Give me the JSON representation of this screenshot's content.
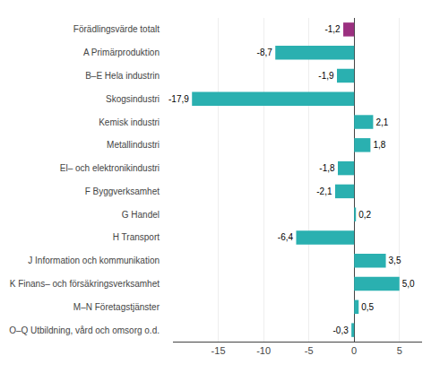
{
  "chart_data": {
    "type": "bar",
    "orientation": "horizontal",
    "categories": [
      "Förädlingsvärde totalt",
      "A Primärproduktion",
      "B–E Hela industrin",
      "Skogsindustri",
      "Kemisk industri",
      "Metallindustri",
      "El– och elektronikindustri",
      "F Byggverksamhet",
      "G Handel",
      "H Transport",
      "J Information och kommunikation",
      "K Finans– och försäkringsverksamhet",
      "M–N Företagstjänster",
      "O–Q Utbildning, vård och omsorg o.d."
    ],
    "values": [
      -1.2,
      -8.7,
      -1.9,
      -17.9,
      2.1,
      1.8,
      -1.8,
      -2.1,
      0.2,
      -6.4,
      3.5,
      5.0,
      0.5,
      -0.3
    ],
    "value_labels": [
      "-1,2",
      "-8,7",
      "-1,9",
      "-17,9",
      "2,1",
      "1,8",
      "-1,8",
      "-2,1",
      "0,2",
      "-6,4",
      "3,5",
      "5,0",
      "0,5",
      "-0,3"
    ],
    "colors": [
      "#9b3080",
      "#2ab0b0",
      "#2ab0b0",
      "#2ab0b0",
      "#2ab0b0",
      "#2ab0b0",
      "#2ab0b0",
      "#2ab0b0",
      "#2ab0b0",
      "#2ab0b0",
      "#2ab0b0",
      "#2ab0b0",
      "#2ab0b0",
      "#2ab0b0"
    ],
    "xlim": [
      -20,
      7.5
    ],
    "xticks": [
      -15,
      -10,
      -5,
      0,
      5
    ],
    "grid": true,
    "data_labels": true
  }
}
